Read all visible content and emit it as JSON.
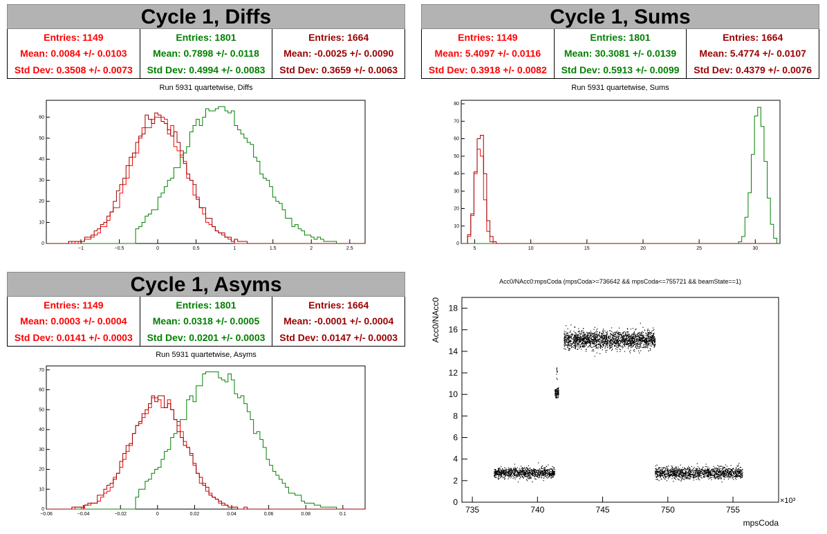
{
  "colors": {
    "red": "#ff0000",
    "green": "#008000",
    "darkred": "#990000"
  },
  "panels": {
    "diffs": {
      "title": "Cycle 1, Diffs",
      "subtitle": "Run 5931 quartetwise, Diffs",
      "stats": [
        {
          "color": "red",
          "entries": "Entries: 1149",
          "mean": "Mean: 0.0084 +/- 0.0103",
          "std": "Std Dev: 0.3508 +/- 0.0073"
        },
        {
          "color": "green",
          "entries": "Entries: 1801",
          "mean": "Mean: 0.7898 +/- 0.0118",
          "std": "Std Dev: 0.4994 +/- 0.0083"
        },
        {
          "color": "darkred",
          "entries": "Entries: 1664",
          "mean": "Mean: -0.0025 +/- 0.0090",
          "std": "Std Dev: 0.3659 +/- 0.0063"
        }
      ]
    },
    "sums": {
      "title": "Cycle 1, Sums",
      "subtitle": "Run 5931 quartetwise, Sums",
      "stats": [
        {
          "color": "red",
          "entries": "Entries: 1149",
          "mean": "Mean: 5.4097 +/- 0.0116",
          "std": "Std Dev: 0.3918 +/- 0.0082"
        },
        {
          "color": "green",
          "entries": "Entries: 1801",
          "mean": "Mean: 30.3081 +/- 0.0139",
          "std": "Std Dev: 0.5913 +/- 0.0099"
        },
        {
          "color": "darkred",
          "entries": "Entries: 1664",
          "mean": "Mean: 5.4774 +/- 0.0107",
          "std": "Std Dev: 0.4379 +/- 0.0076"
        }
      ]
    },
    "asyms": {
      "title": "Cycle 1, Asyms",
      "subtitle": "Run 5931 quartetwise, Asyms",
      "stats": [
        {
          "color": "red",
          "entries": "Entries: 1149",
          "mean": "Mean: 0.0003 +/- 0.0004",
          "std": "Std Dev: 0.0141 +/- 0.0003"
        },
        {
          "color": "green",
          "entries": "Entries: 1801",
          "mean": "Mean: 0.0318 +/- 0.0005",
          "std": "Std Dev: 0.0201 +/- 0.0003"
        },
        {
          "color": "darkred",
          "entries": "Entries: 1664",
          "mean": "Mean: -0.0001 +/- 0.0004",
          "std": "Std Dev: 0.0147 +/- 0.0003"
        }
      ]
    },
    "scatter": {
      "title": "Acc0/NAcc0:mpsCoda (mpsCoda>=736642 && mpsCoda<=755721 && beamState==1)"
    }
  },
  "chart_data": [
    {
      "type": "histogram",
      "title": "Run 5931 quartetwise, Diffs",
      "xlim": [
        -1.45,
        2.7
      ],
      "ylim": [
        0,
        68
      ],
      "xticks": [
        -1,
        -0.5,
        0,
        0.5,
        1,
        1.5,
        2,
        2.5
      ],
      "xticklabels": [
        "−1",
        "−0.5",
        "0",
        "0.5",
        "1",
        "1.5",
        "2",
        "2.5"
      ],
      "yticks": [
        0,
        10,
        20,
        30,
        40,
        50,
        60
      ],
      "series": [
        {
          "color": "green",
          "mean": 0.7898,
          "std": 0.4994,
          "peak": 65,
          "range": [
            -0.3,
            2.55
          ]
        },
        {
          "color": "red",
          "mean": 0.0084,
          "std": 0.3508,
          "peak": 60,
          "range": [
            -1.3,
            1.2
          ]
        },
        {
          "color": "darkred",
          "mean": -0.0025,
          "std": 0.3659,
          "peak": 62,
          "range": [
            -1.3,
            1.2
          ]
        }
      ]
    },
    {
      "type": "histogram",
      "title": "Run 5931 quartetwise, Sums",
      "xlim": [
        3.8,
        32.2
      ],
      "ylim": [
        0,
        82
      ],
      "xticks": [
        5,
        10,
        15,
        20,
        25,
        30
      ],
      "xticklabels": [
        "5",
        "10",
        "15",
        "20",
        "25",
        "30"
      ],
      "yticks": [
        0,
        10,
        20,
        30,
        40,
        50,
        60,
        70,
        80
      ],
      "series": [
        {
          "color": "green",
          "mean": 30.3081,
          "std": 0.5913,
          "peak": 79,
          "range": [
            28.0,
            32.0
          ]
        },
        {
          "color": "red",
          "mean": 5.4097,
          "std": 0.3918,
          "peak": 56,
          "range": [
            4.3,
            6.8
          ]
        },
        {
          "color": "darkred",
          "mean": 5.4774,
          "std": 0.4379,
          "peak": 63,
          "range": [
            4.3,
            6.8
          ]
        }
      ]
    },
    {
      "type": "histogram",
      "title": "Run 5931 quartetwise, Asyms",
      "xlim": [
        -0.06,
        0.112
      ],
      "ylim": [
        0,
        72
      ],
      "xticks": [
        -0.06,
        -0.04,
        -0.02,
        0,
        0.02,
        0.04,
        0.06,
        0.08,
        0.1
      ],
      "xticklabels": [
        "−0.06",
        "−0.04",
        "−0.02",
        "0",
        "0.02",
        "0.04",
        "0.06",
        "0.08",
        "0.1"
      ],
      "yticks": [
        0,
        10,
        20,
        30,
        40,
        50,
        60,
        70
      ],
      "series": [
        {
          "color": "green",
          "mean": 0.0318,
          "std": 0.0201,
          "peak": 69,
          "range": [
            -0.012,
            0.1
          ]
        },
        {
          "color": "red",
          "mean": 0.0003,
          "std": 0.0141,
          "peak": 56,
          "range": [
            -0.05,
            0.05
          ]
        },
        {
          "color": "darkred",
          "mean": -0.0001,
          "std": 0.0147,
          "peak": 57,
          "range": [
            -0.05,
            0.05
          ]
        }
      ]
    },
    {
      "type": "scatter",
      "title": "Acc0/NAcc0:mpsCoda (mpsCoda>=736642 && mpsCoda<=755721 && beamState==1)",
      "xlabel": "mpsCoda",
      "ylabel": "Acc0/NAcc0",
      "x_multiplier": "×10³",
      "xlim": [
        734.2,
        758.5
      ],
      "ylim": [
        0,
        19
      ],
      "xticks": [
        735,
        740,
        745,
        750,
        755
      ],
      "yticks": [
        0,
        2,
        4,
        6,
        8,
        10,
        12,
        14,
        16,
        18
      ],
      "clusters": [
        {
          "x": [
            736.64,
            741.3
          ],
          "y_center": 2.75,
          "y_spread": 0.55,
          "density": 900
        },
        {
          "x": [
            741.3,
            741.6
          ],
          "y_center": 10.2,
          "y_spread": 0.5,
          "density": 90
        },
        {
          "x": [
            741.4,
            741.5
          ],
          "y_center": 12.2,
          "y_spread": 0.9,
          "density": 10
        },
        {
          "x": [
            742.0,
            749.0
          ],
          "y_center": 15.1,
          "y_spread": 0.9,
          "density": 1800
        },
        {
          "x": [
            749.0,
            755.72
          ],
          "y_center": 2.75,
          "y_spread": 0.6,
          "density": 1300
        }
      ]
    }
  ]
}
